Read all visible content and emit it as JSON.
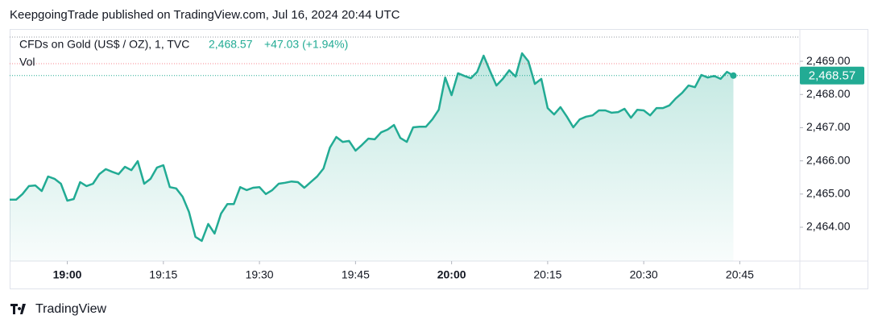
{
  "header": {
    "title": "KeepgoingTrade published on TradingView.com, Jul 16, 2024 20:44 UTC"
  },
  "chart_data": {
    "type": "area",
    "legend": {
      "symbol": "CFDs on Gold (US$ / OZ), 1, TVC",
      "last": "2,468.57",
      "change": "+47.03 (+1.94%)",
      "volume": "Vol"
    },
    "color": "#22ab94",
    "x": [
      "18:51",
      "18:52",
      "18:53",
      "18:54",
      "18:55",
      "18:56",
      "18:57",
      "18:58",
      "18:59",
      "19:00",
      "19:01",
      "19:02",
      "19:03",
      "19:04",
      "19:05",
      "19:06",
      "19:07",
      "19:08",
      "19:09",
      "19:10",
      "19:11",
      "19:12",
      "19:13",
      "19:14",
      "19:15",
      "19:16",
      "19:17",
      "19:18",
      "19:19",
      "19:20",
      "19:21",
      "19:22",
      "19:23",
      "19:24",
      "19:25",
      "19:26",
      "19:27",
      "19:28",
      "19:29",
      "19:30",
      "19:31",
      "19:32",
      "19:33",
      "19:34",
      "19:35",
      "19:36",
      "19:37",
      "19:38",
      "19:39",
      "19:40",
      "19:41",
      "19:42",
      "19:43",
      "19:44",
      "19:45",
      "19:46",
      "19:47",
      "19:48",
      "19:49",
      "19:50",
      "19:51",
      "19:52",
      "19:53",
      "19:54",
      "19:55",
      "19:56",
      "19:57",
      "19:58",
      "19:59",
      "20:00",
      "20:01",
      "20:02",
      "20:03",
      "20:04",
      "20:05",
      "20:06",
      "20:07",
      "20:08",
      "20:09",
      "20:10",
      "20:11",
      "20:12",
      "20:13",
      "20:14",
      "20:15",
      "20:16",
      "20:17",
      "20:18",
      "20:19",
      "20:20",
      "20:21",
      "20:22",
      "20:23",
      "20:24",
      "20:25",
      "20:26",
      "20:27",
      "20:28",
      "20:29",
      "20:30",
      "20:31",
      "20:32",
      "20:33",
      "20:34",
      "20:35",
      "20:36",
      "20:37",
      "20:38",
      "20:39",
      "20:40",
      "20:41",
      "20:42",
      "20:43",
      "20:44"
    ],
    "values": [
      2464.83,
      2464.83,
      2465.0,
      2465.24,
      2465.26,
      2465.09,
      2465.53,
      2465.46,
      2465.31,
      2464.8,
      2464.85,
      2465.36,
      2465.24,
      2465.31,
      2465.6,
      2465.75,
      2465.67,
      2465.6,
      2465.82,
      2465.72,
      2465.99,
      2465.31,
      2465.46,
      2465.8,
      2465.87,
      2465.21,
      2465.17,
      2464.92,
      2464.46,
      2463.71,
      2463.59,
      2464.1,
      2463.81,
      2464.41,
      2464.7,
      2464.7,
      2465.21,
      2465.12,
      2465.19,
      2465.21,
      2465.0,
      2465.12,
      2465.31,
      2465.34,
      2465.38,
      2465.36,
      2465.19,
      2465.36,
      2465.53,
      2465.77,
      2466.4,
      2466.72,
      2466.57,
      2466.6,
      2466.31,
      2466.48,
      2466.67,
      2466.65,
      2466.86,
      2466.94,
      2467.08,
      2466.69,
      2466.57,
      2467.01,
      2467.03,
      2467.03,
      2467.25,
      2467.54,
      2468.51,
      2467.98,
      2468.64,
      2468.56,
      2468.49,
      2468.68,
      2469.17,
      2468.71,
      2468.27,
      2468.47,
      2468.73,
      2468.54,
      2469.24,
      2469.0,
      2468.32,
      2468.47,
      2467.59,
      2467.4,
      2467.62,
      2467.33,
      2467.01,
      2467.25,
      2467.33,
      2467.37,
      2467.52,
      2467.52,
      2467.45,
      2467.47,
      2467.57,
      2467.3,
      2467.54,
      2467.52,
      2467.37,
      2467.59,
      2467.59,
      2467.67,
      2467.88,
      2468.05,
      2468.27,
      2468.22,
      2468.59,
      2468.51,
      2468.56,
      2468.47,
      2468.68,
      2468.57
    ],
    "xlim": [
      "18:51",
      "20:54"
    ],
    "xticks": [
      "19:00",
      "19:15",
      "19:30",
      "19:45",
      "20:00",
      "20:15",
      "20:30",
      "20:45"
    ],
    "ylim": [
      2462.98,
      2469.73
    ],
    "yticks": [
      {
        "value": 2464,
        "label": "2,464.00"
      },
      {
        "value": 2465,
        "label": "2,465.00"
      },
      {
        "value": 2466,
        "label": "2,466.00"
      },
      {
        "value": 2467,
        "label": "2,467.00"
      },
      {
        "value": 2468,
        "label": "2,468.00"
      },
      {
        "value": 2469,
        "label": "2,469.00"
      }
    ]
  },
  "footer": {
    "brand": "TradingView"
  }
}
